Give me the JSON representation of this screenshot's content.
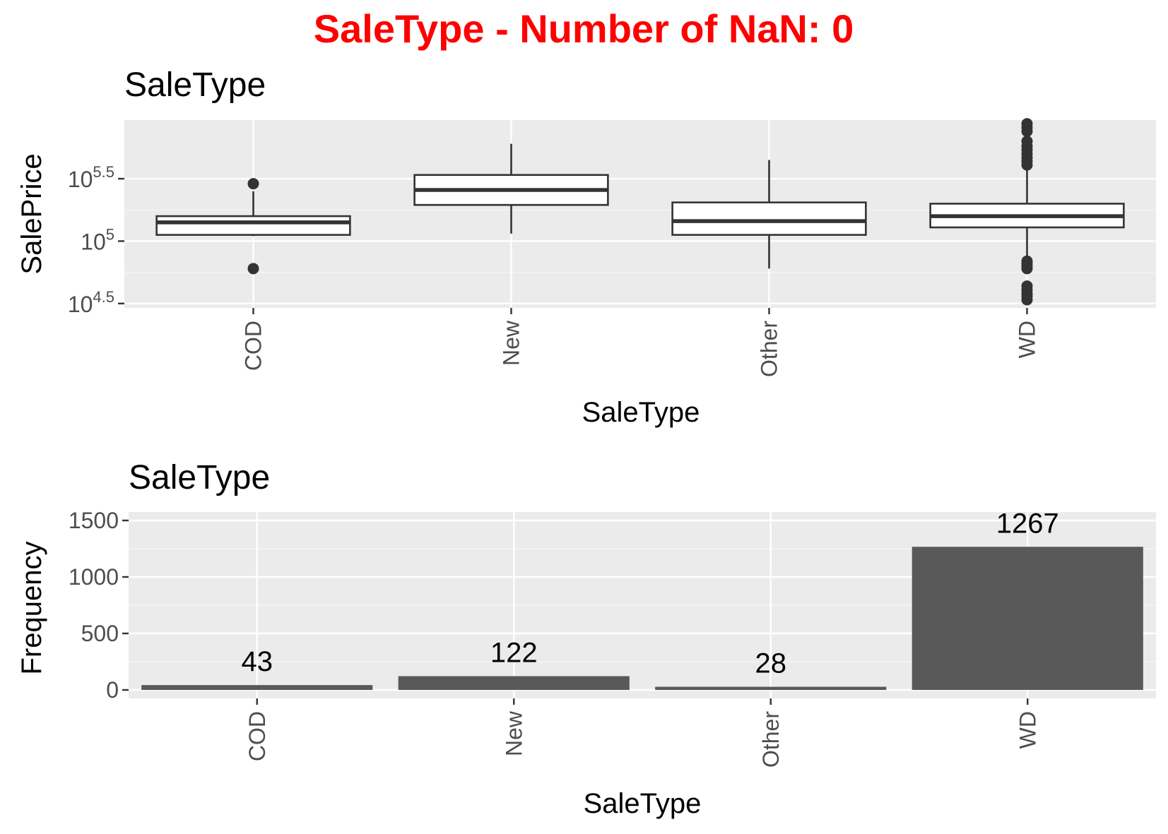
{
  "title": "SaleType - Number of NaN: 0",
  "colors": {
    "title": "#ff0000",
    "panel_background": "#ebebeb",
    "grid_major": "#ffffff",
    "grid_minor": "#f5f5f5",
    "box_fill": "#ffffff",
    "box_stroke": "#333333",
    "bar_fill": "#595959",
    "tick_text": "#4d4d4d"
  },
  "chart_data": [
    {
      "type": "box",
      "title": "SaleType",
      "xlabel": "SaleType",
      "ylabel": "SalePrice",
      "yscale": "log10",
      "yticks": [
        {
          "value": 4.5,
          "base": "10",
          "exp": "4.5"
        },
        {
          "value": 5,
          "base": "10",
          "exp": "5"
        },
        {
          "value": 5.5,
          "base": "10",
          "exp": "5.5"
        }
      ],
      "categories": [
        "COD",
        "New",
        "Other",
        "WD"
      ],
      "boxes": [
        {
          "category": "COD",
          "whisker_low": 5.04,
          "q1": 5.05,
          "median": 5.15,
          "q3": 5.2,
          "whisker_high": 5.4,
          "outliers": [
            4.78,
            5.46
          ]
        },
        {
          "category": "New",
          "whisker_low": 5.06,
          "q1": 5.29,
          "median": 5.41,
          "q3": 5.53,
          "whisker_high": 5.78,
          "outliers": []
        },
        {
          "category": "Other",
          "whisker_low": 4.78,
          "q1": 5.05,
          "median": 5.16,
          "q3": 5.31,
          "whisker_high": 5.65,
          "outliers": []
        },
        {
          "category": "WD",
          "whisker_low": 4.8,
          "q1": 5.11,
          "median": 5.2,
          "q3": 5.3,
          "whisker_high": 5.84,
          "outliers": [
            4.53,
            4.56,
            4.58,
            4.61,
            4.64,
            4.78,
            4.8,
            4.82,
            4.84,
            5.61,
            5.64,
            5.67,
            5.7,
            5.73,
            5.76,
            5.8,
            5.88,
            5.91,
            5.94
          ]
        }
      ],
      "grid": true,
      "legend": "none"
    },
    {
      "type": "bar",
      "title": "SaleType",
      "xlabel": "SaleType",
      "ylabel": "Frequency",
      "categories": [
        "COD",
        "New",
        "Other",
        "WD"
      ],
      "values": [
        43,
        122,
        28,
        1267
      ],
      "labels": [
        "43",
        "122",
        "28",
        "1267"
      ],
      "yticks": [
        0,
        500,
        1000,
        1500
      ],
      "ytick_labels": [
        "0",
        "500",
        "1000",
        "1500"
      ],
      "ylim": [
        0,
        1500
      ],
      "grid": true,
      "legend": "none"
    }
  ]
}
